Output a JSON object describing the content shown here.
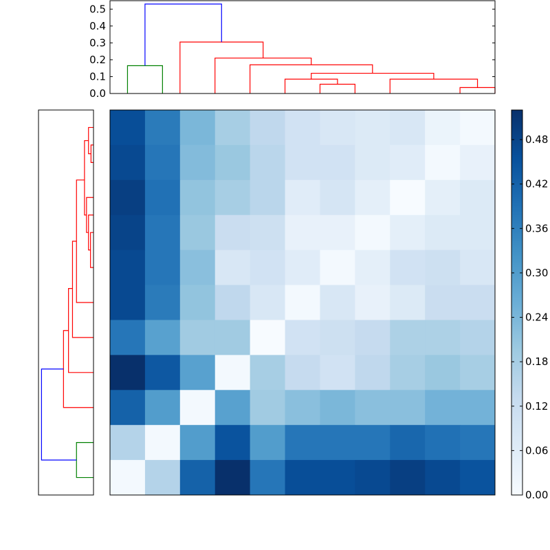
{
  "colors": {
    "cluster_root": "#0000ff",
    "cluster_a": "#008000",
    "cluster_b": "#ff0000"
  },
  "chart_data": {
    "type": "heatmap",
    "title": "",
    "xlabel": "",
    "ylabel": "",
    "colormap": "Blues",
    "vmin": 0.0,
    "vmax": 0.52,
    "colorbar": {
      "ticks": [
        0.0,
        0.06,
        0.12,
        0.18,
        0.24,
        0.3,
        0.36,
        0.42,
        0.48
      ],
      "tick_labels": [
        "0.00",
        "0.06",
        "0.12",
        "0.18",
        "0.24",
        "0.30",
        "0.36",
        "0.42",
        "0.48"
      ],
      "placement": "right"
    },
    "matrix": [
      [
        0.46,
        0.37,
        0.24,
        0.18,
        0.14,
        0.1,
        0.08,
        0.07,
        0.08,
        0.03,
        0.01
      ],
      [
        0.47,
        0.38,
        0.23,
        0.2,
        0.15,
        0.1,
        0.1,
        0.07,
        0.06,
        0.01,
        0.04
      ],
      [
        0.49,
        0.39,
        0.21,
        0.18,
        0.15,
        0.06,
        0.09,
        0.05,
        0.0,
        0.05,
        0.07
      ],
      [
        0.48,
        0.38,
        0.2,
        0.12,
        0.11,
        0.04,
        0.04,
        0.01,
        0.05,
        0.07,
        0.07
      ],
      [
        0.47,
        0.38,
        0.22,
        0.08,
        0.1,
        0.06,
        0.01,
        0.05,
        0.1,
        0.11,
        0.08
      ],
      [
        0.47,
        0.37,
        0.21,
        0.14,
        0.08,
        0.01,
        0.08,
        0.04,
        0.07,
        0.12,
        0.12
      ],
      [
        0.38,
        0.29,
        0.19,
        0.19,
        0.0,
        0.1,
        0.11,
        0.13,
        0.17,
        0.17,
        0.16
      ],
      [
        0.52,
        0.44,
        0.29,
        0.01,
        0.18,
        0.13,
        0.1,
        0.14,
        0.18,
        0.2,
        0.18
      ],
      [
        0.42,
        0.3,
        0.01,
        0.29,
        0.19,
        0.22,
        0.24,
        0.22,
        0.22,
        0.25,
        0.25
      ],
      [
        0.16,
        0.01,
        0.3,
        0.45,
        0.3,
        0.38,
        0.38,
        0.38,
        0.41,
        0.39,
        0.38
      ],
      [
        0.01,
        0.16,
        0.42,
        0.52,
        0.38,
        0.46,
        0.46,
        0.47,
        0.49,
        0.47,
        0.45
      ]
    ],
    "dendrogram_top": {
      "ylim": [
        0.0,
        0.55
      ],
      "yticks": [
        0.0,
        0.1,
        0.2,
        0.3,
        0.4,
        0.5
      ],
      "ytick_labels": [
        "0.0",
        "0.1",
        "0.2",
        "0.3",
        "0.4",
        "0.5"
      ],
      "links": [
        {
          "left": 8.0,
          "right": 9.0,
          "left_height": 0.0,
          "right_height": 0.0,
          "height": 0.035,
          "color": "cluster_b"
        },
        {
          "left": 6.0,
          "right": 8.5,
          "left_height": 0.0,
          "right_height": 0.035,
          "height": 0.085,
          "color": "cluster_b"
        },
        {
          "left": 4.0,
          "right": 5.0,
          "left_height": 0.0,
          "right_height": 0.0,
          "height": 0.055,
          "color": "cluster_b"
        },
        {
          "left": 3.0,
          "right": 4.5,
          "left_height": 0.0,
          "right_height": 0.055,
          "height": 0.085,
          "color": "cluster_b"
        },
        {
          "left": 3.75,
          "right": 7.25,
          "left_height": 0.085,
          "right_height": 0.085,
          "height": 0.12,
          "color": "cluster_b"
        },
        {
          "left": 2.0,
          "right": 5.5,
          "left_height": 0.0,
          "right_height": 0.12,
          "height": 0.17,
          "color": "cluster_b"
        },
        {
          "left": 1.0,
          "right": 3.75,
          "left_height": 0.0,
          "right_height": 0.17,
          "height": 0.21,
          "color": "cluster_b"
        },
        {
          "left": 0.0,
          "right": 2.375,
          "left_height": 0.0,
          "right_height": 0.21,
          "height": 0.305,
          "color": "cluster_b"
        },
        {
          "left": -1.5,
          "right": -0.5,
          "left_height": 0.0,
          "right_height": 0.0,
          "height": 0.165,
          "color": "cluster_a"
        },
        {
          "left": -1.0,
          "right": 1.1875,
          "left_height": 0.165,
          "right_height": 0.305,
          "height": 0.53,
          "color": "cluster_root"
        }
      ],
      "leaf_offset": 1.5
    },
    "dendrogram_left": {
      "links": [
        {
          "left": 0.5,
          "right": 1.0,
          "left_height": 0.0,
          "right_height": 0.0,
          "height": 0.025,
          "color": "cluster_b"
        },
        {
          "left": 0.0,
          "right": 0.75,
          "left_height": 0.0,
          "right_height": 0.025,
          "height": 0.05,
          "color": "cluster_b"
        },
        {
          "left": 3.0,
          "right": 4.0,
          "left_height": 0.0,
          "right_height": 0.0,
          "height": 0.03,
          "color": "cluster_b"
        },
        {
          "left": 2.5,
          "right": 3.5,
          "left_height": 0.0,
          "right_height": 0.03,
          "height": 0.05,
          "color": "cluster_b"
        },
        {
          "left": 2.0,
          "right": 3.0,
          "left_height": 0.0,
          "right_height": 0.05,
          "height": 0.07,
          "color": "cluster_b"
        },
        {
          "left": 0.375,
          "right": 2.5,
          "left_height": 0.05,
          "right_height": 0.07,
          "height": 0.09,
          "color": "cluster_b"
        },
        {
          "left": 1.5,
          "right": 5.0,
          "left_height": 0.09,
          "right_height": 0.0,
          "height": 0.17,
          "color": "cluster_b"
        },
        {
          "left": 3.25,
          "right": 6.0,
          "left_height": 0.17,
          "right_height": 0.0,
          "height": 0.21,
          "color": "cluster_b"
        },
        {
          "left": 4.6,
          "right": 7.0,
          "left_height": 0.21,
          "right_height": 0.0,
          "height": 0.25,
          "color": "cluster_b"
        },
        {
          "left": 5.8,
          "right": 8.0,
          "left_height": 0.25,
          "right_height": 0.0,
          "height": 0.3,
          "color": "cluster_b"
        },
        {
          "left": 9.0,
          "right": 10.0,
          "left_height": 0.0,
          "right_height": 0.0,
          "height": 0.17,
          "color": "cluster_a"
        },
        {
          "left": 6.9,
          "right": 9.5,
          "left_height": 0.3,
          "right_height": 0.17,
          "height": 0.52,
          "color": "cluster_root"
        }
      ],
      "xlim": [
        0.0,
        0.55
      ]
    }
  }
}
